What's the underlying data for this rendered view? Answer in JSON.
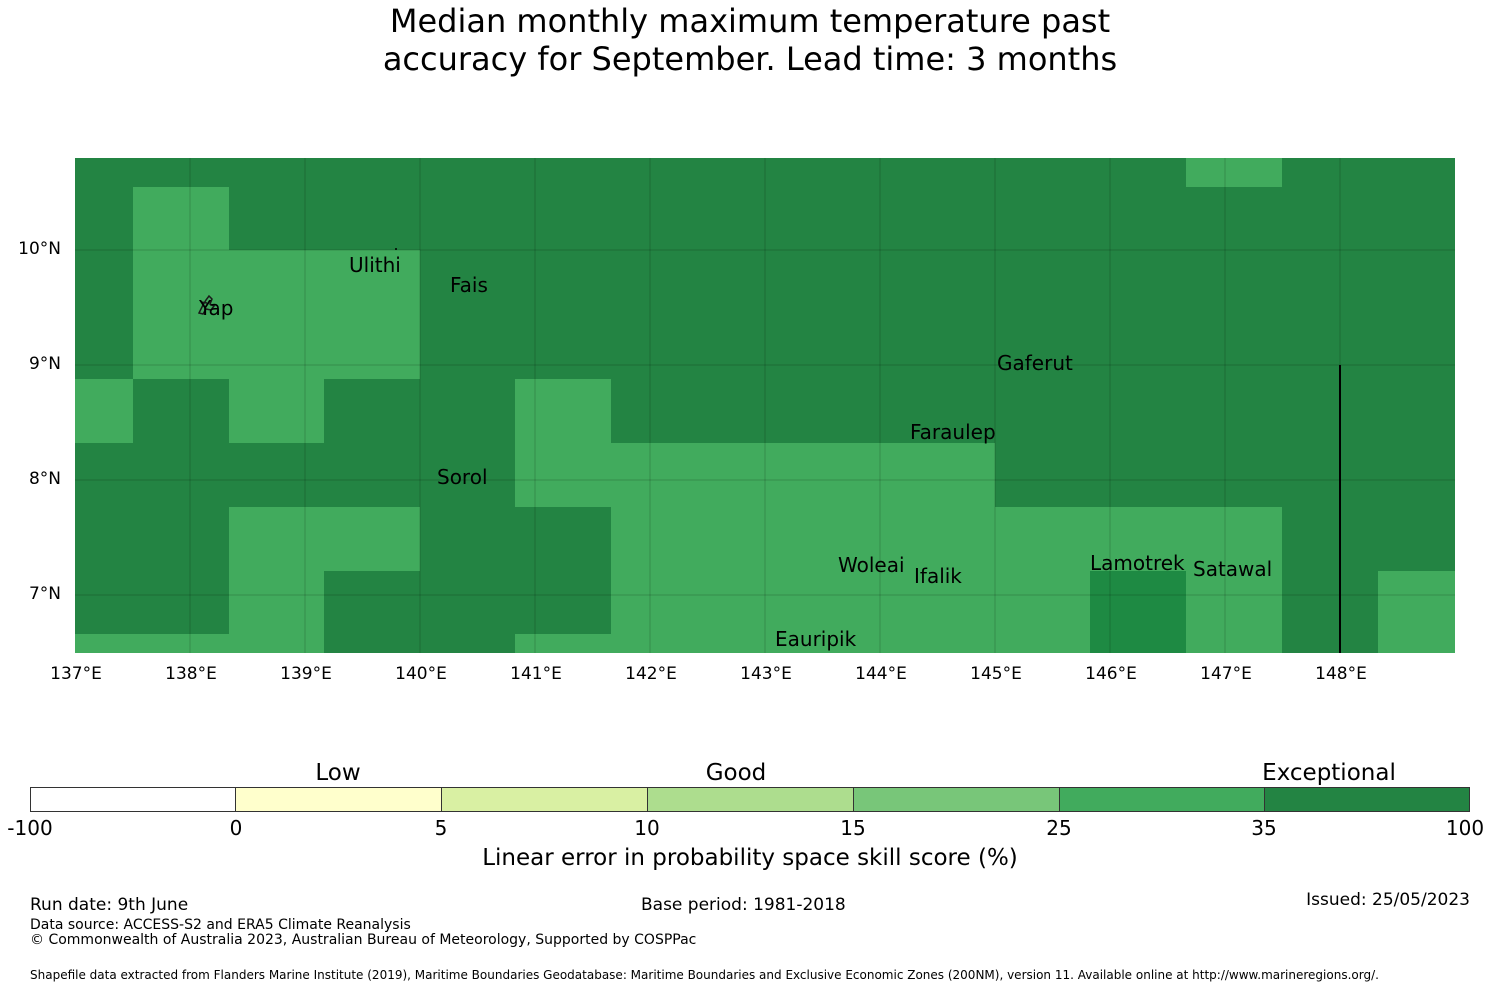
{
  "title_line1": "Median monthly maximum temperature past",
  "title_line2": "accuracy for September. Lead time: 3 months",
  "map": {
    "lon_range": [
      137.0,
      149.0
    ],
    "lat_range": [
      6.5,
      10.8
    ],
    "grid": true,
    "lat_ticks": [
      "10°N",
      "9°N",
      "8°N",
      "7°N"
    ],
    "lon_ticks": [
      "137°E",
      "138°E",
      "139°E",
      "140°E",
      "141°E",
      "142°E",
      "143°E",
      "144°E",
      "145°E",
      "146°E",
      "147°E",
      "148°E"
    ],
    "colors": {
      "dark_green": "#238443",
      "medium_green": "#41ab5d",
      "deeper_green": "#1e8a43"
    },
    "places": [
      "Ulithi",
      "Fais",
      "Yap",
      "Gaferut",
      "Faraulep",
      "Sorol",
      "Woleai",
      "Ifalik",
      "Lamotrek",
      "Satawal",
      "Eauripik"
    ]
  },
  "colorbar": {
    "categories": [
      "Low",
      "Good",
      "Exceptional"
    ],
    "ticks": [
      "-100",
      "0",
      "5",
      "10",
      "15",
      "25",
      "35",
      "100"
    ],
    "colors": [
      "#ffffff",
      "#ffffcc",
      "#d9f0a3",
      "#addd8e",
      "#78c679",
      "#41ab5d",
      "#238443"
    ],
    "label": "Linear error in probability space skill score (%)"
  },
  "footer": {
    "run_date": "Run date: 9th June",
    "base_period": "Base period: 1981-2018",
    "issued": "Issued: 25/05/2023",
    "data_source": "Data source: ACCESS-S2 and ERA5 Climate Reanalysis",
    "copyright": "© Commonwealth of Australia 2023, Australian Bureau of Meteorology, Supported by COSPPac",
    "shapefile": "Shapefile data extracted from Flanders Marine Institute (2019), Maritime Boundaries Geodatabase: Maritime Boundaries and Exclusive Economic Zones (200NM), version 11. Available online at http://www.marineregions.org/."
  }
}
